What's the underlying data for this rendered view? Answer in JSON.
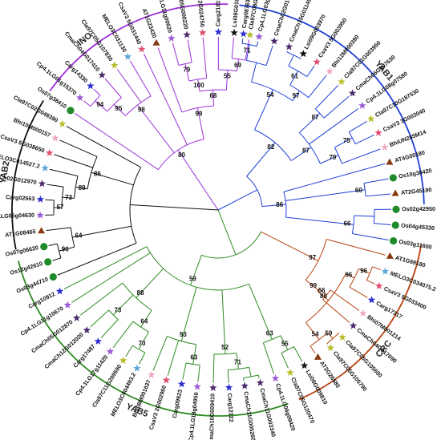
{
  "colors": {
    "INO": "#9b30d9",
    "YAB1": "#1f3fd6",
    "YAB2": "#111111",
    "YAB5": "#2e8b22",
    "CRC": "#b8420f",
    "Os": "#1f8a2a",
    "AT": "#8a3a12",
    "Cla": "#b7bd2b",
    "Cp": "#9b5bd6",
    "Cs": "#e05070",
    "Bhi": "#f0a8c8",
    "MELO": "#5da9d8",
    "Cma": "#4a2a6a",
    "Carg": "#2f2fd0",
    "Lsi": "#111111"
  },
  "clades": [
    {
      "name": "INO",
      "start": 215.3,
      "end": 272.7,
      "label_angle": 232,
      "color_key": "INO"
    },
    {
      "name": "YAB1",
      "start": 275.9,
      "end": 358.4,
      "label_angle": 320,
      "color_key": "YAB1"
    },
    {
      "name": "CRC",
      "start": 9.6,
      "end": 66.9,
      "label_angle": 40,
      "color_key": "CRC"
    },
    {
      "name": "YAB5",
      "start": 70.1,
      "end": 165.7,
      "label_angle": 112,
      "color_key": "YAB5"
    },
    {
      "name": "YAB2",
      "start": 168.9,
      "end": 212.1,
      "label_angle": 190,
      "color_key": "YAB2"
    }
  ],
  "leaves": [
    {
      "name": "Carg08763",
      "marker": "star",
      "color_key": "Carg"
    },
    {
      "name": "Cp4.1LG03g02370",
      "marker": "star",
      "color_key": "Cp"
    },
    {
      "name": "CmaCh02G015570",
      "marker": "star",
      "color_key": "Cma"
    },
    {
      "name": "CmaCh15G011490",
      "marker": "star",
      "color_key": "Cma"
    },
    {
      "name": "Lsi09G003970",
      "marker": "star",
      "color_key": "Lsi"
    },
    {
      "name": "CsaV3 5G003950",
      "marker": "star",
      "color_key": "Cs"
    },
    {
      "name": "Bhi12M000380",
      "marker": "star",
      "color_key": "Bhi"
    },
    {
      "name": "Cla97C01G003950",
      "marker": "star",
      "color_key": "Cla"
    },
    {
      "name": "CmaCh06G007630",
      "marker": "star",
      "color_key": "Cma"
    },
    {
      "name": "Cp4.1LG08g07580",
      "marker": "star",
      "color_key": "Cp"
    },
    {
      "name": "Cla97C10G187530",
      "marker": "star",
      "color_key": "Cla"
    },
    {
      "name": "CsaV3 3G003040",
      "marker": "star",
      "color_key": "Cs"
    },
    {
      "name": "BhiUN285M14",
      "marker": "star",
      "color_key": "Bhi"
    },
    {
      "name": "AT4G00180",
      "marker": "triangle",
      "color_key": "AT"
    },
    {
      "name": "Os10g36420",
      "marker": "circle",
      "color_key": "Os"
    },
    {
      "name": "AT2G45190",
      "marker": "triangle",
      "color_key": "AT"
    },
    {
      "name": "Os02g42950",
      "marker": "circle",
      "color_key": "Os"
    },
    {
      "name": "Os04g45330",
      "marker": "circle",
      "color_key": "Os"
    },
    {
      "name": "Os03g11600",
      "marker": "circle",
      "color_key": "Os"
    },
    {
      "name": "AT1G69180",
      "marker": "triangle",
      "color_key": "AT"
    },
    {
      "name": "MELO3C034075.2",
      "marker": "star",
      "color_key": "MELO"
    },
    {
      "name": "CsaV3 5G033400",
      "marker": "star",
      "color_key": "Cs"
    },
    {
      "name": "Carg17317",
      "marker": "star",
      "color_key": "Carg"
    },
    {
      "name": "Bhi07M001214",
      "marker": "star",
      "color_key": "Bhi"
    },
    {
      "name": "CmaCh04G017090",
      "marker": "star",
      "color_key": "Cma"
    },
    {
      "name": "Cla97C05G105600",
      "marker": "star",
      "color_key": "Cla"
    },
    {
      "name": "Cla97C05G105790",
      "marker": "star",
      "color_key": "Cla"
    },
    {
      "name": "AT2G26580",
      "marker": "triangle",
      "color_key": "AT"
    },
    {
      "name": "Lsi06G009810",
      "marker": "star",
      "color_key": "Lsi"
    },
    {
      "name": "Cla97C06G120470",
      "marker": "star",
      "color_key": "Cla"
    },
    {
      "name": "Cp4.1LG06g09420",
      "marker": "star",
      "color_key": "Cp"
    },
    {
      "name": "CmaCh11G003340",
      "marker": "star",
      "color_key": "Cma"
    },
    {
      "name": "CmaCh11G005260",
      "marker": "star",
      "color_key": "Cma"
    },
    {
      "name": "Carg12122",
      "marker": "star",
      "color_key": "Carg"
    },
    {
      "name": "CmaCh10G009410",
      "marker": "star",
      "color_key": "Cma"
    },
    {
      "name": "Cp4.1LG18g04950",
      "marker": "star",
      "color_key": "Cp"
    },
    {
      "name": "Carg09923",
      "marker": "star",
      "color_key": "Carg"
    },
    {
      "name": "CsaV3 2G002960",
      "marker": "star",
      "color_key": "Cs"
    },
    {
      "name": "Bhi08M001637",
      "marker": "star",
      "color_key": "Bhi"
    },
    {
      "name": "MELO3C004493.2",
      "marker": "star",
      "color_key": "MELO"
    },
    {
      "name": "Cla97C11G209590",
      "marker": "star",
      "color_key": "Cla"
    },
    {
      "name": "Cp4.1LG17g11420",
      "marker": "star",
      "color_key": "Cp"
    },
    {
      "name": "Carg17487",
      "marker": "star",
      "color_key": "Carg"
    },
    {
      "name": "CmaCh12G012020",
      "marker": "star",
      "color_key": "Cma"
    },
    {
      "name": "CmaCh05G012870",
      "marker": "star",
      "color_key": "Cma"
    },
    {
      "name": "Cp4.1LG11g10670",
      "marker": "star",
      "color_key": "Cp"
    },
    {
      "name": "Carg10912",
      "marker": "star",
      "color_key": "Carg"
    },
    {
      "name": "Os03g44710",
      "marker": "circle",
      "color_key": "Os"
    },
    {
      "name": "Os12g42610",
      "marker": "circle",
      "color_key": "Os"
    },
    {
      "name": "Os07g06620",
      "marker": "circle",
      "color_key": "Os"
    },
    {
      "name": "AT1G08465",
      "marker": "triangle",
      "color_key": "AT"
    },
    {
      "name": "Cp4.1LG05g04630",
      "marker": "star",
      "color_key": "Cp"
    },
    {
      "name": "Carg02663",
      "marker": "star",
      "color_key": "Carg"
    },
    {
      "name": "CmaCh02G012970",
      "marker": "star",
      "color_key": "Cma"
    },
    {
      "name": "MELO3C014527.2",
      "marker": "star",
      "color_key": "MELO"
    },
    {
      "name": "CsaV3 6G038650",
      "marker": "star",
      "color_key": "Cs"
    },
    {
      "name": "Bhi10M000157",
      "marker": "star",
      "color_key": "Bhi"
    },
    {
      "name": "Cla97C02G048390",
      "marker": "star",
      "color_key": "Cla"
    },
    {
      "name": "Os07g38410",
      "marker": "circle",
      "color_key": "Os"
    },
    {
      "name": "Cp4.1LG01g15370",
      "marker": "star",
      "color_key": "Cp"
    },
    {
      "name": "Carg14330",
      "marker": "star",
      "color_key": "Carg"
    },
    {
      "name": "CmaCh04G017410",
      "marker": "star",
      "color_key": "Cma"
    },
    {
      "name": "Cla97C05G107830",
      "marker": "star",
      "color_key": "Cla"
    },
    {
      "name": "MELO3C031130",
      "marker": "star",
      "color_key": "MELO"
    },
    {
      "name": "CsaV3 5G031440",
      "marker": "star",
      "color_key": "Cs"
    },
    {
      "name": "AT1G23420",
      "marker": "triangle",
      "color_key": "AT"
    },
    {
      "name": "Cp4.1LG11g00620",
      "marker": "star",
      "color_key": "Cp"
    },
    {
      "name": "CmaCh05G000220",
      "marker": "star",
      "color_key": "Cma"
    },
    {
      "name": "CsaV3 2G024750",
      "marker": "star",
      "color_key": "Cs"
    },
    {
      "name": "Carg21819",
      "marker": "star",
      "color_key": "Carg"
    },
    {
      "name": "Lsi08G016690",
      "marker": "star",
      "color_key": "Lsi"
    },
    {
      "name": "Cla97C08G161640",
      "marker": "star",
      "color_key": "Cla"
    }
  ],
  "nodes": [
    {
      "id": "r",
      "r": 0
    },
    {
      "id": "ino",
      "parent": "r",
      "r": 45,
      "color_key": "INO"
    },
    {
      "id": "i80",
      "parent": "ino",
      "r": 90,
      "label": "80",
      "color_key": "INO"
    },
    {
      "id": "i99",
      "parent": "i80",
      "r": 130,
      "label": "99",
      "color_key": "INO"
    },
    {
      "id": "i98",
      "parent": "i80",
      "r": 165,
      "label": "98",
      "color_key": "INO"
    },
    {
      "id": "i95",
      "parent": "i98",
      "r": 185,
      "label": "95",
      "color_key": "INO"
    },
    {
      "id": "i94",
      "parent": "i95",
      "r": 205,
      "label": "94",
      "color_key": "INO"
    },
    {
      "id": "i68",
      "parent": "i99",
      "r": 150,
      "label": "68",
      "color_key": "INO"
    },
    {
      "id": "i100",
      "parent": "i68",
      "r": 165,
      "label": "100",
      "color_key": "INO"
    },
    {
      "id": "i79",
      "parent": "i100",
      "r": 187,
      "label": "79",
      "color_key": "INO"
    },
    {
      "id": "i55",
      "parent": "i68",
      "r": 175,
      "label": "55",
      "color_key": "INO"
    },
    {
      "id": "i69",
      "parent": "i55",
      "r": 190,
      "label": "69",
      "color_key": "INO"
    },
    {
      "id": "i71",
      "parent": "i69",
      "r": 210,
      "label": "71",
      "color_key": "INO"
    },
    {
      "id": "yab1",
      "parent": "r",
      "r": 55,
      "color_key": "YAB1"
    },
    {
      "id": "y82",
      "parent": "yab1",
      "r": 110,
      "label": "82",
      "color_key": "YAB1"
    },
    {
      "id": "y54",
      "parent": "y82",
      "r": 165,
      "label": "54",
      "color_key": "YAB1"
    },
    {
      "id": "y54b",
      "parent": "y54",
      "r": 190,
      "color_key": "YAB1"
    },
    {
      "id": "y54c",
      "parent": "y54b",
      "r": 210,
      "color_key": "YAB1"
    },
    {
      "id": "y97",
      "parent": "y54",
      "r": 180,
      "label": "97",
      "color_key": "YAB1"
    },
    {
      "id": "y61",
      "parent": "y97",
      "r": 200,
      "label": "61",
      "color_key": "YAB1"
    },
    {
      "id": "y61b",
      "parent": "y61",
      "r": 215,
      "color_key": "YAB1"
    },
    {
      "id": "y87",
      "parent": "y82",
      "r": 140,
      "label": "87",
      "color_key": "YAB1"
    },
    {
      "id": "y87b",
      "parent": "y87",
      "r": 175,
      "label": "87",
      "color_key": "YAB1"
    },
    {
      "id": "y79",
      "parent": "y87",
      "r": 165,
      "label": "79",
      "color_key": "YAB1"
    },
    {
      "id": "y75",
      "parent": "y79",
      "r": 190,
      "label": "75",
      "color_key": "YAB1"
    },
    {
      "id": "y86",
      "parent": "yab1",
      "r": 85,
      "label": "86",
      "color_key": "YAB1"
    },
    {
      "id": "y60",
      "parent": "y86",
      "r": 185,
      "label": "60",
      "color_key": "YAB1"
    },
    {
      "id": "y66",
      "parent": "y86",
      "r": 170,
      "label": "66",
      "color_key": "YAB1"
    },
    {
      "id": "y66b",
      "parent": "y66",
      "r": 195,
      "color_key": "YAB1"
    },
    {
      "id": "c",
      "parent": "r",
      "r": 60,
      "color_key": "YAB5"
    },
    {
      "id": "crc",
      "parent": "c",
      "r": 140,
      "label": "97",
      "color_key": "CRC"
    },
    {
      "id": "c99",
      "parent": "crc",
      "r": 160,
      "label": "99",
      "color_key": "CRC"
    },
    {
      "id": "c86",
      "parent": "c99",
      "r": 178,
      "label": "86",
      "color_key": "CRC"
    },
    {
      "id": "c96",
      "parent": "c86",
      "r": 190,
      "label": "96",
      "color_key": "CRC"
    },
    {
      "id": "c96b",
      "parent": "c96",
      "r": 205,
      "label": "96",
      "color_key": "CRC"
    },
    {
      "id": "c66",
      "parent": "c99",
      "r": 172,
      "label": "66",
      "color_key": "CRC"
    },
    {
      "id": "c54",
      "parent": "c86",
      "r": 205,
      "label": "54",
      "color_key": "CRC"
    },
    {
      "id": "c59",
      "parent": "c54",
      "r": 215,
      "label": "59",
      "color_key": "CRC"
    },
    {
      "id": "y5",
      "parent": "c",
      "r": 100,
      "label": "59",
      "color_key": "YAB5"
    },
    {
      "id": "y5a",
      "parent": "y5",
      "r": 150,
      "label": "88",
      "color_key": "YAB5"
    },
    {
      "id": "y5b",
      "parent": "y5a",
      "r": 175,
      "label": "64",
      "color_key": "YAB5"
    },
    {
      "id": "y5c",
      "parent": "y5b",
      "r": 200,
      "label": "70",
      "color_key": "YAB5"
    },
    {
      "id": "y5d",
      "parent": "y5a",
      "r": 185,
      "label": "73",
      "color_key": "YAB5"
    },
    {
      "id": "y5e",
      "parent": "y5",
      "r": 170,
      "label": "93",
      "color_key": "YAB5"
    },
    {
      "id": "y5f",
      "parent": "y5e",
      "r": 195,
      "label": "63",
      "color_key": "YAB5"
    },
    {
      "id": "y5g",
      "parent": "y5",
      "r": 180,
      "label": "52",
      "color_key": "YAB5"
    },
    {
      "id": "y5h",
      "parent": "y5g",
      "r": 200,
      "label": "71",
      "color_key": "YAB5"
    },
    {
      "id": "y5i",
      "parent": "y5h",
      "r": 212,
      "color_key": "YAB5"
    },
    {
      "id": "y5j",
      "parent": "y5",
      "r": 175,
      "label": "63",
      "color_key": "YAB5"
    },
    {
      "id": "y5k",
      "parent": "y5j",
      "r": 195,
      "label": "55",
      "color_key": "YAB5"
    },
    {
      "id": "yab2",
      "parent": "r",
      "r": 110,
      "color_key": "YAB2"
    },
    {
      "id": "b86",
      "parent": "yab2",
      "r": 165,
      "label": "86",
      "color_key": "YAB2"
    },
    {
      "id": "b89",
      "parent": "b86",
      "r": 180,
      "label": "89",
      "color_key": "YAB2"
    },
    {
      "id": "b73",
      "parent": "b89",
      "r": 195,
      "label": "73",
      "color_key": "YAB2"
    },
    {
      "id": "b57",
      "parent": "b73",
      "r": 205,
      "label": "57",
      "color_key": "YAB2"
    },
    {
      "id": "b64",
      "parent": "yab2",
      "r": 185,
      "label": "64",
      "color_key": "YAB2"
    },
    {
      "id": "b96",
      "parent": "b64",
      "r": 205,
      "label": "96",
      "color_key": "YAB2"
    }
  ],
  "leaf_parents": [
    "y54c",
    "y54c",
    "y54b",
    "y61b",
    "y61b",
    "y61",
    "y97",
    "y87b",
    "y87b",
    "y87",
    "y75",
    "y75",
    "y79",
    "y86",
    "y60",
    "y60",
    "y66b",
    "y66b",
    "y66",
    "crc",
    "c96b",
    "c96b",
    "c96",
    "c66",
    "c66",
    "c59",
    "c59",
    "c54",
    "y5k",
    "y5k",
    "y5j",
    "y5i",
    "y5i",
    "y5h",
    "y5g",
    "y5f",
    "y5f",
    "y5e",
    "y5e",
    "y5c",
    "y5c",
    "y5b",
    "y5d",
    "y5d",
    "y5a",
    "y5",
    "y5",
    "yab2",
    "b96",
    "b96",
    "b64",
    "b57",
    "b57",
    "b73",
    "b89",
    "b86",
    "b86",
    "yab2",
    "i80",
    "i94",
    "i94",
    "i95",
    "i98",
    "i98",
    "i80",
    "i99",
    "i79",
    "i79",
    "i100",
    "i55",
    "i69",
    "i71"
  ]
}
